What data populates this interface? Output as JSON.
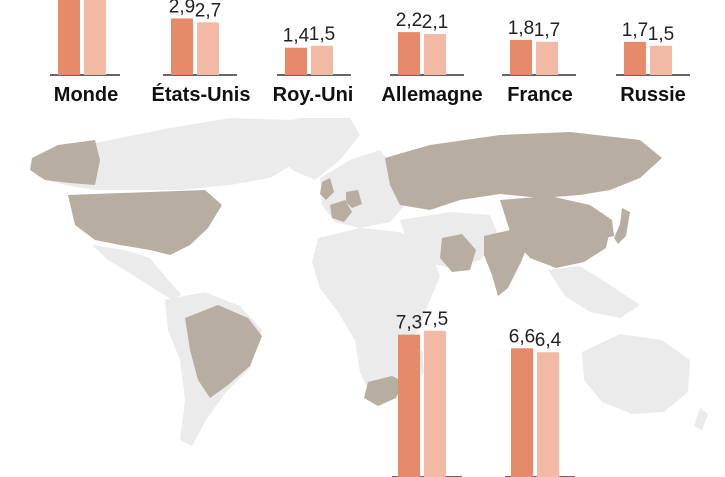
{
  "colors": {
    "bar_first": "#e68a6a",
    "bar_second": "#f2b9a4",
    "land": "#ebebeb",
    "highlight": "#b7ada0",
    "baseline": "#333333"
  },
  "chart_data": {
    "type": "bar",
    "title": "",
    "xlabel": "",
    "ylabel": "",
    "ylim": [
      0,
      8
    ],
    "categories": [
      "Monde",
      "États-Unis",
      "Roy.-Uni",
      "Allemagne",
      "France",
      "Russie",
      "",
      ""
    ],
    "series": [
      {
        "values": [
          null,
          2.9,
          1.4,
          2.2,
          1.8,
          1.7,
          7.3,
          6.6
        ]
      },
      {
        "values": [
          null,
          2.7,
          1.5,
          2.1,
          1.7,
          1.5,
          7.5,
          6.4
        ]
      }
    ],
    "value_labels": [
      [
        "",
        ""
      ],
      [
        "2,9",
        "2,7"
      ],
      [
        "1,4",
        "1,5"
      ],
      [
        "2,2",
        "2,1"
      ],
      [
        "1,8",
        "1,7"
      ],
      [
        "1,7",
        "1,5"
      ],
      [
        "7,3",
        "7,5"
      ],
      [
        "6,6",
        "6,4"
      ]
    ]
  }
}
